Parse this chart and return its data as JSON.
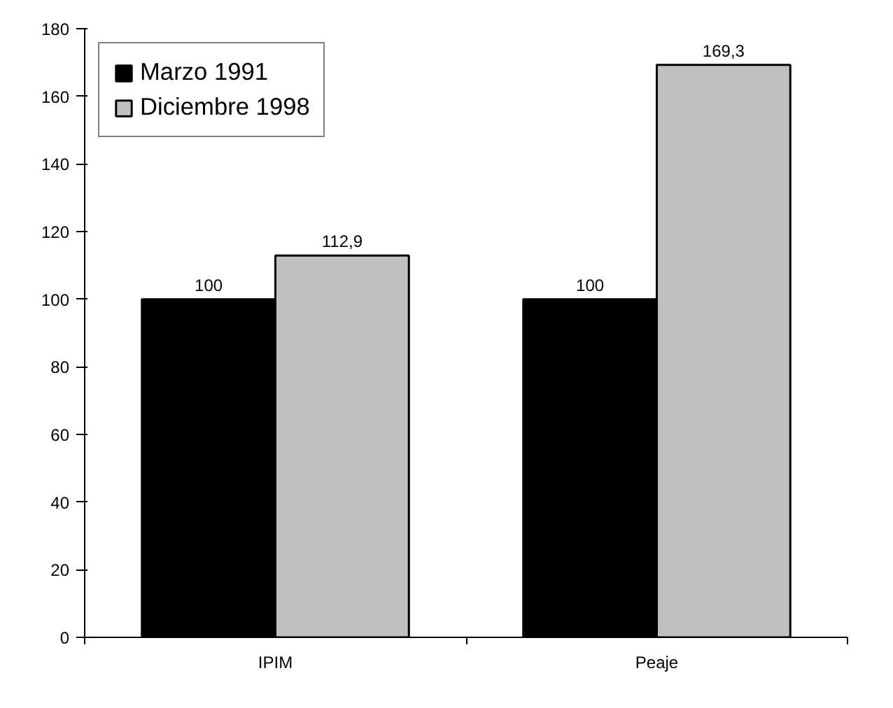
{
  "chart_data": {
    "type": "bar",
    "categories": [
      "IPIM",
      "Peaje"
    ],
    "series": [
      {
        "name": "Marzo 1991",
        "color": "#000000",
        "values": [
          100,
          100
        ],
        "value_labels": [
          "100",
          "100"
        ]
      },
      {
        "name": "Diciembre 1998",
        "color": "#c0c0c0",
        "values": [
          112.9,
          169.3
        ],
        "value_labels": [
          "112,9",
          "169,3"
        ]
      }
    ],
    "ylim": [
      0,
      180
    ],
    "yticks": [
      0,
      20,
      40,
      60,
      80,
      100,
      120,
      140,
      160,
      180
    ],
    "grid": false,
    "legend": "top left"
  }
}
